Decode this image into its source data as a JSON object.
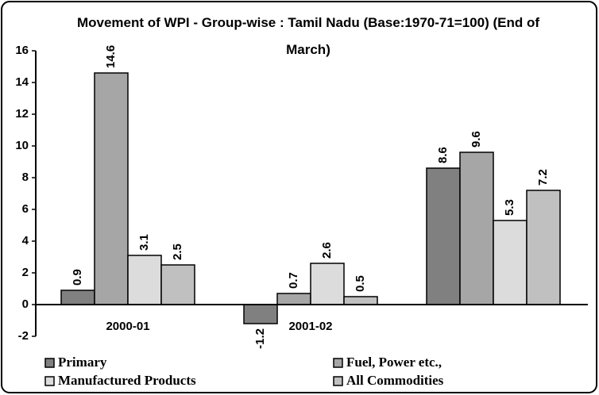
{
  "chart_data": {
    "type": "bar",
    "title": "Movement of WPI - Group-wise : Tamil Nadu (Base:1970-71=100) (End of March)",
    "categories": [
      "2000-01",
      "2001-02",
      null
    ],
    "series": [
      {
        "name": "Primary",
        "color": "#808080",
        "values": [
          0.9,
          -1.2,
          8.6
        ]
      },
      {
        "name": "Fuel, Power etc.,",
        "color": "#a6a6a6",
        "values": [
          14.6,
          0.7,
          9.6
        ]
      },
      {
        "name": "Manufactured Products",
        "color": "#dcdcdc",
        "values": [
          3.1,
          2.6,
          5.3
        ]
      },
      {
        "name": "All Commodities",
        "color": "#c0c0c0",
        "values": [
          2.5,
          0.5,
          7.2
        ]
      }
    ],
    "ylim": [
      -2,
      16
    ],
    "yticks": [
      -2,
      0,
      2,
      4,
      6,
      8,
      10,
      12,
      14,
      16
    ],
    "grid": false,
    "legend": "bottom"
  }
}
